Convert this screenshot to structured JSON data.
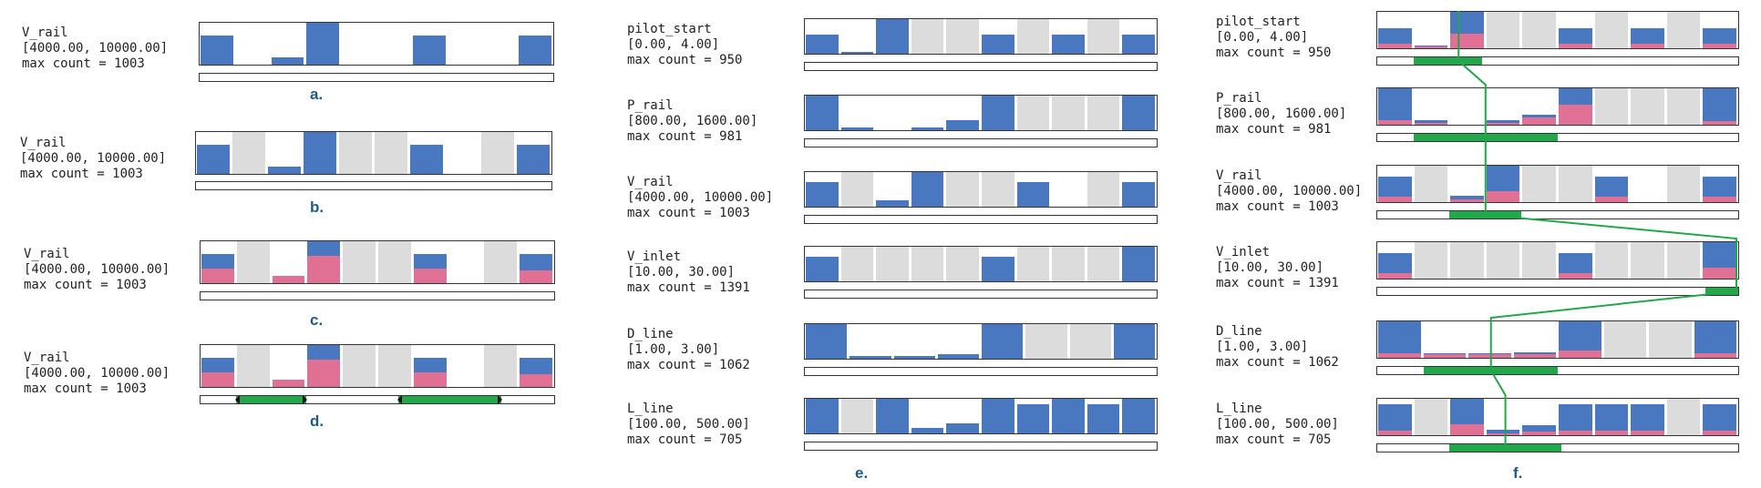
{
  "colors": {
    "blue": "#4a78c0",
    "pink": "#e07094",
    "grey": "#dcdcdc",
    "green": "#22a74a"
  },
  "panels": {
    "a": {
      "letter": "a.",
      "name": "V_rail",
      "range": "[4000.00, 10000.00]",
      "count": "max count = 1003",
      "blue": [
        0.7,
        0,
        0.18,
        1.0,
        0,
        0,
        0.7,
        0,
        0,
        0.7
      ],
      "pink": [
        0,
        0,
        0,
        0,
        0,
        0,
        0,
        0,
        0,
        0
      ],
      "grey": [
        false,
        false,
        false,
        false,
        false,
        false,
        false,
        false,
        false,
        false
      ],
      "selections": []
    },
    "b": {
      "letter": "b.",
      "name": "V_rail",
      "range": "[4000.00, 10000.00]",
      "count": "max count = 1003",
      "blue": [
        0.7,
        0,
        0.18,
        1.0,
        0,
        0,
        0.7,
        0,
        0,
        0.7
      ],
      "pink": [
        0,
        0,
        0,
        0,
        0,
        0,
        0,
        0,
        0,
        0
      ],
      "grey": [
        false,
        true,
        false,
        false,
        true,
        true,
        false,
        false,
        true,
        false
      ],
      "selections": []
    },
    "c": {
      "letter": "c.",
      "name": "V_rail",
      "range": "[4000.00, 10000.00]",
      "count": "max count = 1003",
      "blue": [
        0.7,
        0,
        0.18,
        1.0,
        0,
        0,
        0.7,
        0,
        0,
        0.7
      ],
      "pink": [
        0.35,
        0,
        0.18,
        0.65,
        0,
        0,
        0.35,
        0,
        0,
        0.3
      ],
      "grey": [
        false,
        true,
        false,
        false,
        true,
        true,
        false,
        false,
        true,
        false
      ],
      "selections": []
    },
    "d": {
      "letter": "d.",
      "name": "V_rail",
      "range": "[4000.00, 10000.00]",
      "count": "max count = 1003",
      "blue": [
        0.7,
        0,
        0.18,
        1.0,
        0,
        0,
        0.7,
        0,
        0,
        0.7
      ],
      "pink": [
        0.35,
        0,
        0.18,
        0.65,
        0,
        0,
        0.35,
        0,
        0,
        0.3
      ],
      "grey": [
        false,
        true,
        false,
        false,
        true,
        true,
        false,
        false,
        true,
        false
      ],
      "selections": [
        [
          0.1,
          0.3
        ],
        [
          0.56,
          0.85
        ]
      ]
    },
    "e": {
      "letter": "e.",
      "rows": [
        {
          "name": "pilot_start",
          "range": "[0.00, 4.00]",
          "count": "max count = 950",
          "blue": [
            0.55,
            0.06,
            1.0,
            0,
            0,
            0.55,
            0,
            0.55,
            0,
            0.55
          ],
          "pink": [
            0,
            0,
            0,
            0,
            0,
            0,
            0,
            0,
            0,
            0
          ],
          "grey": [
            false,
            false,
            false,
            true,
            true,
            false,
            true,
            false,
            true,
            false
          ]
        },
        {
          "name": "P_rail",
          "range": "[800.00, 1600.00]",
          "count": "max count = 981",
          "blue": [
            1.0,
            0.07,
            0,
            0.07,
            0.28,
            1.0,
            0,
            0,
            0,
            1.0
          ],
          "pink": [
            0,
            0,
            0,
            0,
            0,
            0,
            0,
            0,
            0,
            0
          ],
          "grey": [
            false,
            false,
            false,
            false,
            false,
            false,
            true,
            true,
            true,
            false
          ]
        },
        {
          "name": "V_rail",
          "range": "[4000.00, 10000.00]",
          "count": "max count = 1003",
          "blue": [
            0.7,
            0,
            0.18,
            1.0,
            0,
            0,
            0.7,
            0,
            0,
            0.7
          ],
          "pink": [
            0,
            0,
            0,
            0,
            0,
            0,
            0,
            0,
            0,
            0
          ],
          "grey": [
            false,
            true,
            false,
            false,
            true,
            true,
            false,
            false,
            true,
            false
          ]
        },
        {
          "name": "V_inlet",
          "range": "[10.00, 30.00]",
          "count": "max count = 1391",
          "blue": [
            0.7,
            0,
            0,
            0,
            0,
            0.7,
            0,
            0,
            0,
            1.0
          ],
          "pink": [
            0,
            0,
            0,
            0,
            0,
            0,
            0,
            0,
            0,
            0
          ],
          "grey": [
            false,
            true,
            true,
            true,
            true,
            false,
            true,
            true,
            true,
            false
          ]
        },
        {
          "name": "D_line",
          "range": "[1.00, 3.00]",
          "count": "max count = 1062",
          "blue": [
            1.0,
            0.07,
            0.07,
            0.14,
            1.0,
            0,
            0,
            1.0
          ],
          "pink": [
            0,
            0,
            0,
            0,
            0,
            0,
            0,
            0
          ],
          "grey": [
            false,
            false,
            false,
            false,
            false,
            true,
            true,
            false
          ]
        },
        {
          "name": "L_line",
          "range": "[100.00, 500.00]",
          "count": "max count = 705",
          "blue": [
            1.0,
            0,
            1.0,
            0.15,
            0.28,
            1.0,
            0.85,
            1.0,
            0.85,
            1.0
          ],
          "pink": [
            0,
            0,
            0,
            0,
            0,
            0,
            0,
            0,
            0,
            0
          ],
          "grey": [
            false,
            true,
            false,
            false,
            false,
            false,
            false,
            false,
            false,
            false
          ]
        }
      ]
    },
    "f": {
      "letter": "f.",
      "rows": [
        {
          "name": "pilot_start",
          "range": "[0.00, 4.00]",
          "count": "max count = 950",
          "blue": [
            0.55,
            0.08,
            1.0,
            0,
            0,
            0.55,
            0,
            0.55,
            0,
            0.55
          ],
          "pink": [
            0.12,
            0.04,
            0.4,
            0,
            0,
            0.12,
            0,
            0.12,
            0,
            0.12
          ],
          "grey": [
            false,
            false,
            false,
            true,
            true,
            false,
            true,
            false,
            true,
            false
          ],
          "selections": [
            [
              0.1,
              0.29
            ]
          ]
        },
        {
          "name": "P_rail",
          "range": "[800.00, 1600.00]",
          "count": "max count = 981",
          "blue": [
            1.0,
            0.12,
            0,
            0.12,
            0.28,
            1.0,
            0,
            0,
            0,
            1.0
          ],
          "pink": [
            0.12,
            0.04,
            0,
            0.06,
            0.2,
            0.55,
            0,
            0,
            0,
            0.1
          ],
          "grey": [
            false,
            false,
            false,
            false,
            false,
            false,
            true,
            true,
            true,
            false
          ],
          "selections": [
            [
              0.1,
              0.5
            ]
          ]
        },
        {
          "name": "V_rail",
          "range": "[4000.00, 10000.00]",
          "count": "max count = 1003",
          "blue": [
            0.7,
            0,
            0.18,
            1.0,
            0,
            0,
            0.7,
            0,
            0,
            0.7
          ],
          "pink": [
            0.15,
            0,
            0.08,
            0.3,
            0,
            0,
            0.15,
            0,
            0,
            0.15
          ],
          "grey": [
            false,
            true,
            false,
            false,
            true,
            true,
            false,
            false,
            true,
            false
          ],
          "selections": [
            [
              0.2,
              0.4
            ]
          ]
        },
        {
          "name": "V_inlet",
          "range": "[10.00, 30.00]",
          "count": "max count = 1391",
          "blue": [
            0.7,
            0,
            0,
            0,
            0,
            0.7,
            0,
            0,
            0,
            1.0
          ],
          "pink": [
            0.15,
            0,
            0,
            0,
            0,
            0.15,
            0,
            0,
            0,
            0.3
          ],
          "grey": [
            false,
            true,
            true,
            true,
            true,
            false,
            true,
            true,
            true,
            false
          ],
          "selections": [
            [
              0.91,
              1.0
            ]
          ]
        },
        {
          "name": "D_line",
          "range": "[1.00, 3.00]",
          "count": "max count = 1062",
          "blue": [
            1.0,
            0.12,
            0.12,
            0.14,
            1.0,
            0,
            0,
            1.0
          ],
          "pink": [
            0.12,
            0.1,
            0.1,
            0.1,
            0.2,
            0,
            0,
            0.12
          ],
          "grey": [
            false,
            false,
            false,
            false,
            false,
            true,
            true,
            false
          ],
          "selections": [
            [
              0.13,
              0.5
            ]
          ]
        },
        {
          "name": "L_line",
          "range": "[100.00, 500.00]",
          "count": "max count = 705",
          "blue": [
            0.85,
            0,
            1.0,
            0.15,
            0.28,
            0.85,
            0.85,
            0.85,
            0,
            0.85
          ],
          "pink": [
            0.12,
            0,
            0.3,
            0.06,
            0.1,
            0.12,
            0.12,
            0.12,
            0,
            0.12
          ],
          "grey": [
            false,
            true,
            false,
            false,
            false,
            false,
            false,
            false,
            true,
            false
          ],
          "selections": [
            [
              0.2,
              0.51
            ]
          ]
        }
      ]
    }
  }
}
